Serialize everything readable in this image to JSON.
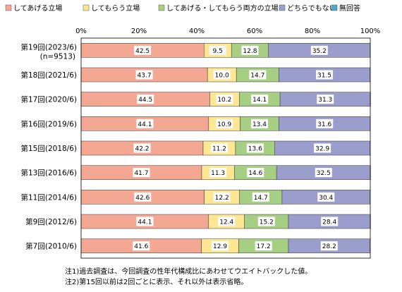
{
  "chart_data": {
    "type": "bar",
    "orientation": "horizontal",
    "stacked": true,
    "normalized": true,
    "title": "",
    "xlabel": "",
    "ylabel": "",
    "xlim": [
      0,
      100
    ],
    "x_ticks": [
      "0%",
      "20%",
      "40%",
      "60%",
      "80%",
      "100%"
    ],
    "grid": false,
    "legend_position": "top",
    "categories": [
      "第19回(2023/6)",
      "第18回(2021/6)",
      "第17回(2020/6)",
      "第16回(2019/6)",
      "第15回(2018/6)",
      "第13回(2016/6)",
      "第11回(2014/6)",
      "第9回(2012/6)",
      "第7回(2010/6)"
    ],
    "category_sublabels": [
      "(n=9513)",
      "",
      "",
      "",
      "",
      "",
      "",
      "",
      ""
    ],
    "series": [
      {
        "name": "してあげる立場",
        "color": "#f4a894",
        "values": [
          42.5,
          43.7,
          44.5,
          44.1,
          42.2,
          41.7,
          42.6,
          44.1,
          41.6
        ]
      },
      {
        "name": "してもらう立場",
        "color": "#fde792",
        "values": [
          9.5,
          10.0,
          10.2,
          10.9,
          11.2,
          11.3,
          12.2,
          12.4,
          12.9
        ]
      },
      {
        "name": "してあげる・してもらう両方の立場",
        "color": "#a6cf84",
        "values": [
          12.8,
          14.7,
          14.1,
          13.4,
          13.6,
          14.6,
          14.7,
          15.2,
          17.2
        ]
      },
      {
        "name": "どちらでもない",
        "color": "#9b9ecd",
        "values": [
          35.2,
          31.5,
          31.3,
          31.6,
          32.9,
          32.5,
          30.4,
          28.4,
          28.2
        ]
      },
      {
        "name": "無回答",
        "color": "#4bacc6",
        "values": [
          0,
          0,
          0,
          0,
          0,
          0,
          0,
          0,
          0
        ]
      }
    ]
  },
  "notes": [
    "注1)過去調査は、今回調査の性年代構成比にあわせてウエイトバックした値。",
    "注2)第15回以前は2回ごとに表示、それ以外は表示省略。"
  ]
}
